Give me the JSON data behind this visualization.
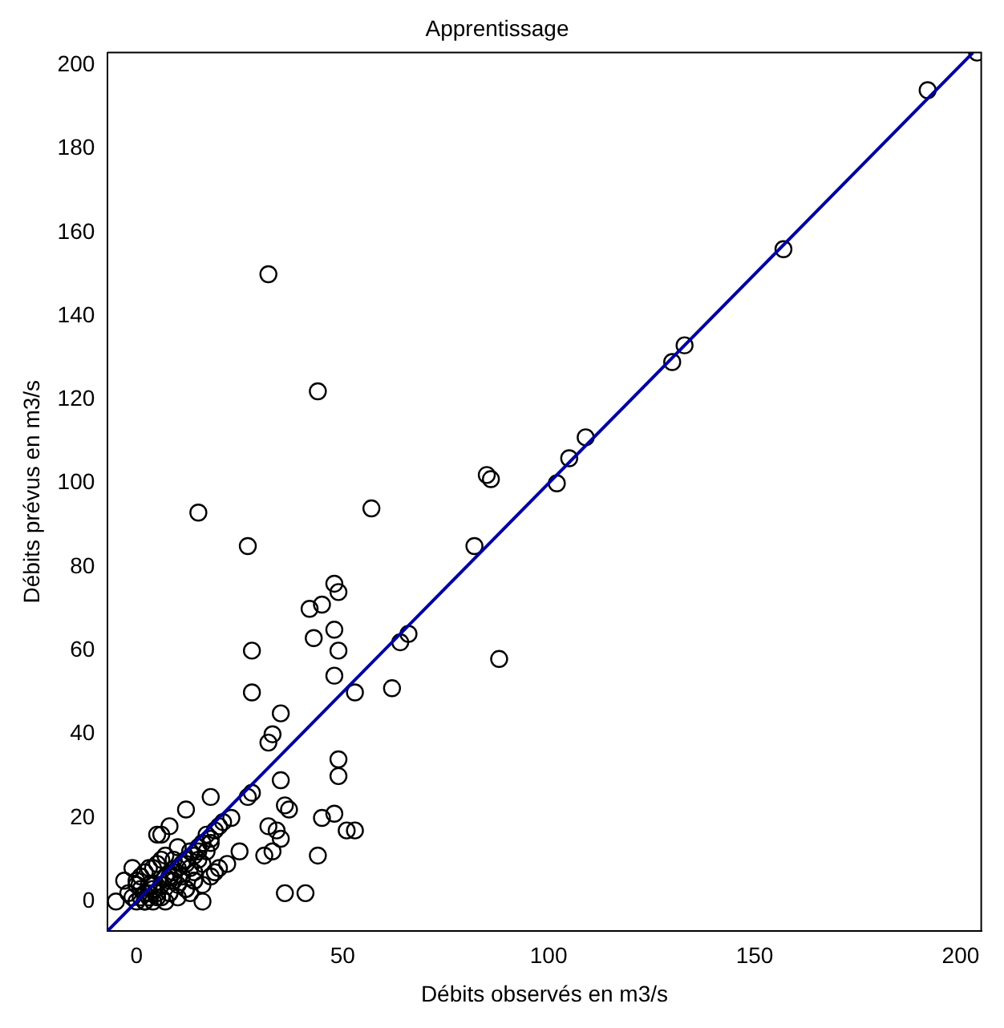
{
  "chart_data": {
    "type": "scatter",
    "title": "Apprentissage",
    "xlabel": "Débits observés en m3/s",
    "ylabel": "Débits prévus en m3/s",
    "xlim": [
      -7,
      205
    ],
    "ylim": [
      -7,
      203
    ],
    "xticks": [
      0,
      50,
      100,
      150,
      200
    ],
    "yticks": [
      0,
      20,
      40,
      60,
      80,
      100,
      120,
      140,
      160,
      180,
      200
    ],
    "grid": false,
    "legend": false,
    "series": [
      {
        "color": "#000000",
        "marker": "circle",
        "x": [
          15,
          27,
          32,
          44,
          57,
          82,
          85,
          86,
          88,
          102,
          105,
          109,
          130,
          133,
          157,
          192,
          204,
          28,
          28,
          42,
          45,
          48,
          49,
          43,
          48,
          49,
          48,
          53,
          62,
          64,
          66,
          32,
          33,
          35,
          35,
          32,
          34,
          31,
          33,
          36,
          37,
          35,
          44,
          45,
          48,
          49,
          49,
          51,
          53,
          36,
          41,
          27,
          28,
          18,
          23,
          25,
          12,
          5,
          8,
          -3,
          -5,
          0,
          1,
          2,
          3,
          4,
          5,
          6,
          7,
          8,
          9,
          10,
          11,
          12,
          13,
          14,
          15,
          16,
          17,
          18,
          19,
          20,
          21,
          1,
          2,
          3,
          4,
          5,
          -1,
          7,
          8,
          9,
          10,
          11,
          12,
          13,
          14,
          15,
          16,
          17,
          0,
          1,
          2,
          3,
          4,
          5,
          6,
          7,
          8,
          9,
          10,
          -2,
          -1,
          0,
          2,
          4,
          6,
          8,
          10,
          12,
          14,
          16,
          18,
          20,
          22,
          3,
          6,
          9,
          12,
          15,
          18,
          14,
          16,
          13,
          19
        ],
        "values": [
          93,
          85,
          150,
          122,
          94,
          85,
          102,
          101,
          58,
          100,
          106,
          111,
          129,
          133,
          156,
          194,
          203,
          60,
          50,
          70,
          71,
          76,
          74,
          63,
          65,
          60,
          54,
          50,
          51,
          62,
          64,
          38,
          40,
          45,
          29,
          18,
          17,
          11,
          12,
          23,
          22,
          15,
          11,
          20,
          21,
          34,
          30,
          17,
          17,
          2,
          2,
          25,
          26,
          25,
          20,
          12,
          22,
          16,
          18,
          5,
          0,
          0,
          1,
          2,
          1,
          3,
          2,
          4,
          6,
          5,
          7,
          8,
          9,
          10,
          12,
          11,
          13,
          14,
          16,
          15,
          17,
          18,
          19,
          3,
          0,
          2,
          4,
          1,
          8,
          0,
          2,
          5,
          4,
          6,
          3,
          8,
          7,
          10,
          9,
          12,
          5,
          6,
          7,
          4,
          8,
          9,
          16,
          11,
          6,
          10,
          13,
          2,
          1,
          4,
          0,
          0,
          1,
          2,
          1,
          3,
          5,
          4,
          6,
          8,
          9,
          8,
          10,
          6,
          9,
          12,
          14,
          5,
          0,
          2,
          7
        ]
      },
      {
        "type": "line",
        "color": "#0000a0",
        "marker": "none",
        "line_style": "solid",
        "x": [
          -7,
          203
        ],
        "values": [
          -7,
          203
        ]
      }
    ]
  }
}
